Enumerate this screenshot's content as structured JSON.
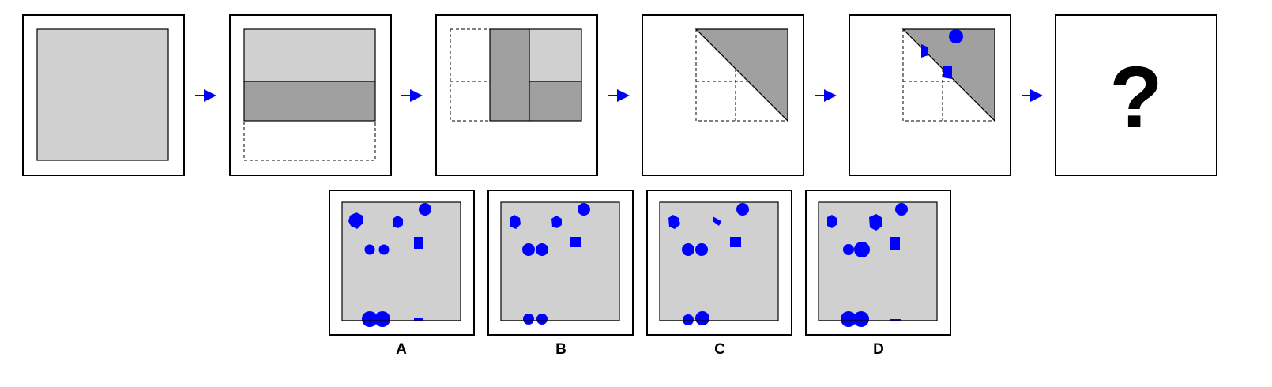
{
  "colors": {
    "frame": "#000000",
    "paper": "#d0d0d0",
    "folded": "#a0a0a0",
    "punch": "#0000ff",
    "arrow": "#0000ff",
    "background": "#ffffff"
  },
  "question_mark": "?",
  "options": [
    {
      "label": "A"
    },
    {
      "label": "B"
    },
    {
      "label": "C"
    },
    {
      "label": "D"
    }
  ]
}
